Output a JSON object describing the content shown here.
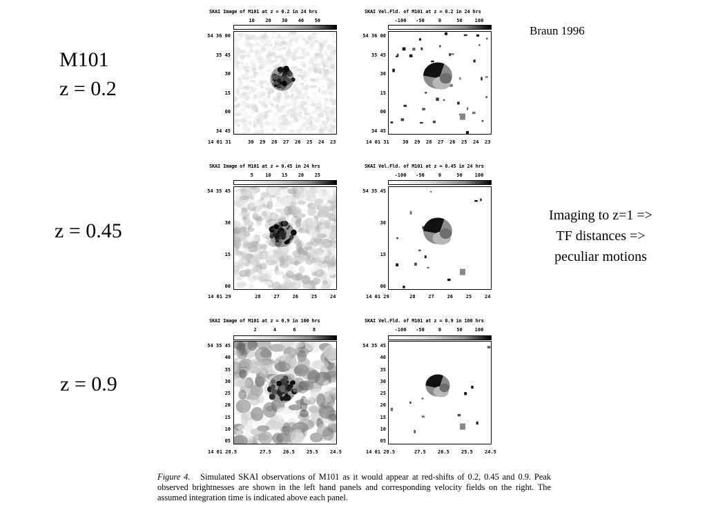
{
  "slide": {
    "credit": "Braun 1996",
    "title_object": "M101",
    "z_labels": [
      "z = 0.2",
      "z = 0.45",
      "z = 0.9"
    ],
    "note_lines": [
      "Imaging to z=1 =>",
      "TF distances =>",
      "peculiar motions"
    ]
  },
  "panels": [
    {
      "row": 0,
      "left": {
        "title": "SKAI Image of M101 at z = 0.2 in 24 hrs",
        "colorbar_ticks": [
          "10",
          "20",
          "30",
          "40",
          "50"
        ],
        "y_labels": [
          "54 36 00",
          "35 45",
          "30",
          "15",
          "00",
          "34 45"
        ],
        "x_labels": [
          "14 01 31",
          "30",
          "29",
          "28",
          "27",
          "26",
          "25",
          "24",
          "23"
        ]
      },
      "right": {
        "title": "SKAI Vel.Fld. of M101 at z = 0.2 in 24 hrs",
        "colorbar_ticks": [
          "-100",
          "-50",
          "0",
          "50",
          "100"
        ],
        "y_labels": [
          "54 36 00",
          "35 45",
          "30",
          "15",
          "00",
          "34 45"
        ],
        "x_labels": [
          "14 01 31",
          "30",
          "29",
          "28",
          "27",
          "26",
          "25",
          "24",
          "23"
        ]
      }
    },
    {
      "row": 1,
      "left": {
        "title": "SKAI Image of M101 at z = 0.45 in 24 hrs",
        "colorbar_ticks": [
          "5",
          "10",
          "15",
          "20",
          "25"
        ],
        "y_labels": [
          "54 35 45",
          "30",
          "15",
          "00"
        ],
        "x_labels": [
          "14 01 29",
          "28",
          "27",
          "26",
          "25",
          "24"
        ]
      },
      "right": {
        "title": "SKAI Vel.Fld. of M101 at z = 0.45 in 24 hrs",
        "colorbar_ticks": [
          "-100",
          "-50",
          "0",
          "50",
          "100"
        ],
        "y_labels": [
          "54 35 45",
          "30",
          "15",
          "00"
        ],
        "x_labels": [
          "14 01 29",
          "28",
          "27",
          "26",
          "25",
          "24"
        ]
      }
    },
    {
      "row": 2,
      "left": {
        "title": "SKAI Image of M101 at z = 0.9 in 100 hrs",
        "colorbar_ticks": [
          "2",
          "4",
          "6",
          "8"
        ],
        "y_labels": [
          "54 35 45",
          "40",
          "35",
          "30",
          "25",
          "20",
          "15",
          "10",
          "05"
        ],
        "x_labels": [
          "14 01 28.5",
          "27.5",
          "26.5",
          "25.5",
          "24.5"
        ]
      },
      "right": {
        "title": "SKAI Vel.Fld. of M101 at z = 0.9 in 100 hrs",
        "colorbar_ticks": [
          "-100",
          "-50",
          "0",
          "50",
          "100"
        ],
        "y_labels": [
          "54 35 45",
          "40",
          "35",
          "30",
          "25",
          "20",
          "15",
          "10",
          "05"
        ],
        "x_labels": [
          "14 01 28.5",
          "27.5",
          "26.5",
          "25.5",
          "24.5"
        ]
      }
    }
  ],
  "caption": {
    "label": "Figure 4.",
    "text": "Simulated SKAI observations of M101 as it would appear at red-shifts of 0.2, 0.45 and 0.9. Peak observed brightnesses are shown in the left hand panels and corresponding velocity fields on the right. The assumed integration time is indicated above each panel."
  }
}
